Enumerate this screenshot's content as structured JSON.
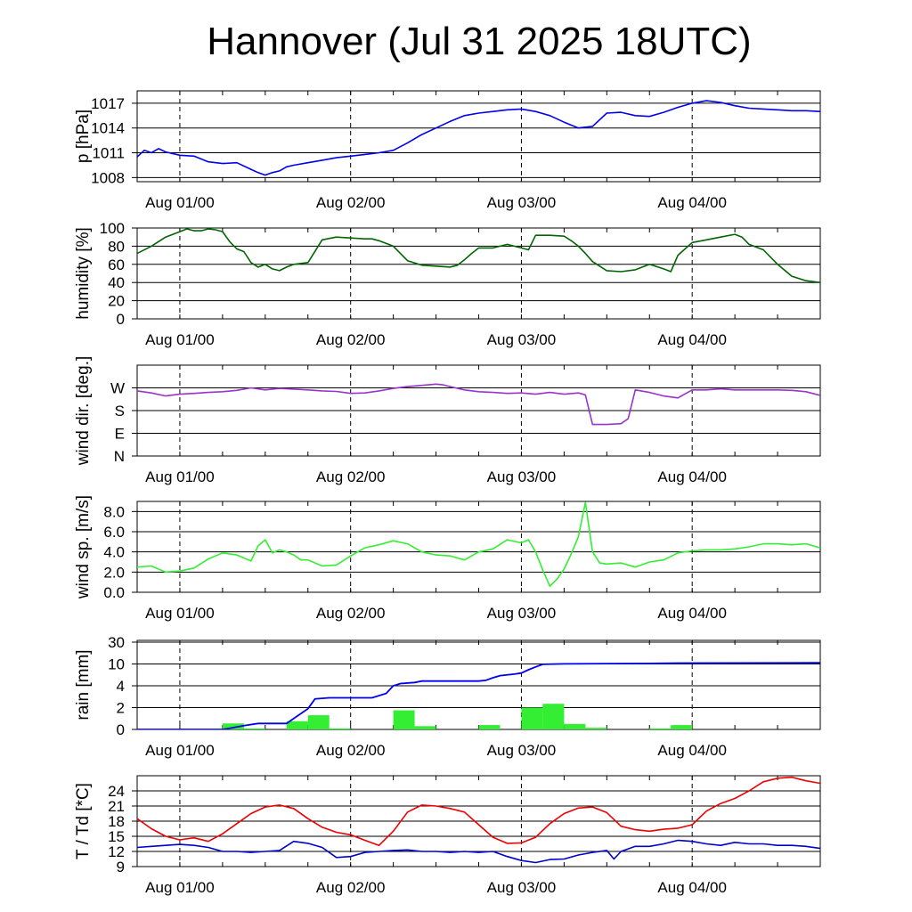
{
  "title": "Hannover (Jul 31 2025 18UTC)",
  "x_tick_labels": [
    "Aug 01/00",
    "Aug 02/00",
    "Aug 03/00",
    "Aug 04/00"
  ],
  "chart_data": [
    {
      "type": "line",
      "ylabel": "p [hPa]",
      "yticks": [
        1008,
        1011,
        1014,
        1017
      ],
      "ylim": [
        1007.5,
        1018.5
      ],
      "x_unit": "hours since Jul 31 18UTC",
      "xlim": [
        0,
        96
      ],
      "grid": "horizontal lines at y ticks, dashed verticals at day boundaries",
      "series": [
        {
          "color": "#0000ee",
          "x": [
            0,
            1,
            2,
            3,
            4,
            6,
            8,
            10,
            12,
            14,
            16,
            17,
            18,
            19,
            20,
            21,
            22,
            24,
            26,
            28,
            30,
            32,
            34,
            36,
            38,
            40,
            42,
            44,
            46,
            48,
            50,
            52,
            54,
            56,
            58,
            60,
            62,
            64,
            66,
            68,
            70,
            72,
            74,
            76,
            78,
            80,
            82,
            84,
            86,
            88,
            90,
            92,
            94,
            96
          ],
          "y": [
            1010.5,
            1011.3,
            1011.0,
            1011.5,
            1011.1,
            1010.7,
            1010.6,
            1009.9,
            1009.7,
            1009.8,
            1009.0,
            1008.6,
            1008.3,
            1008.6,
            1008.8,
            1009.3,
            1009.5,
            1009.8,
            1010.1,
            1010.4,
            1010.6,
            1010.8,
            1011.0,
            1011.3,
            1012.2,
            1013.2,
            1014.0,
            1014.8,
            1015.5,
            1015.8,
            1016.0,
            1016.2,
            1016.3,
            1016.0,
            1015.5,
            1014.7,
            1014.0,
            1014.2,
            1015.8,
            1015.9,
            1015.5,
            1015.4,
            1015.9,
            1016.5,
            1017.0,
            1017.3,
            1017.1,
            1016.7,
            1016.4,
            1016.3,
            1016.2,
            1016.1,
            1016.1,
            1016.0
          ]
        }
      ]
    },
    {
      "type": "line",
      "ylabel": "humidity [%]",
      "yticks": [
        0,
        20,
        40,
        60,
        80,
        100
      ],
      "ylim": [
        0,
        100
      ],
      "x_unit": "hours since Jul 31 18UTC",
      "xlim": [
        0,
        96
      ],
      "series": [
        {
          "color": "#006600",
          "x": [
            0,
            2,
            4,
            6,
            7,
            8,
            9,
            10,
            11,
            12,
            13,
            14,
            15,
            16,
            17,
            18,
            19,
            20,
            21,
            22,
            24,
            26,
            28,
            30,
            32,
            33,
            34,
            36,
            38,
            40,
            42,
            44,
            45,
            46,
            47,
            48,
            50,
            52,
            54,
            55,
            56,
            58,
            60,
            61,
            62,
            63,
            64,
            66,
            68,
            70,
            72,
            74,
            75,
            76,
            78,
            80,
            82,
            84,
            85,
            86,
            88,
            90,
            92,
            94,
            96
          ],
          "y": [
            72,
            80,
            90,
            96,
            99,
            97,
            97,
            99,
            98,
            96,
            85,
            77,
            74,
            62,
            57,
            60,
            55,
            53,
            57,
            60,
            62,
            87,
            90,
            89,
            88,
            88,
            86,
            80,
            64,
            59,
            58,
            57,
            59,
            65,
            72,
            78,
            78,
            82,
            78,
            76,
            92,
            92,
            91,
            86,
            80,
            72,
            63,
            53,
            52,
            54,
            60,
            55,
            52,
            70,
            84,
            87,
            90,
            93,
            90,
            82,
            76,
            60,
            47,
            42,
            40
          ]
        }
      ]
    },
    {
      "type": "line",
      "ylabel": "wind dir. [deg.]",
      "ytick_labels": [
        "N",
        "E",
        "S",
        "W"
      ],
      "yticks": [
        0,
        90,
        180,
        270
      ],
      "ylim": [
        0,
        360
      ],
      "x_unit": "hours since Jul 31 18UTC",
      "xlim": [
        0,
        96
      ],
      "series": [
        {
          "color": "#9933cc",
          "x": [
            0,
            2,
            4,
            6,
            8,
            10,
            12,
            14,
            16,
            18,
            20,
            22,
            24,
            26,
            28,
            30,
            32,
            34,
            36,
            38,
            40,
            42,
            43,
            44,
            46,
            48,
            50,
            52,
            54,
            56,
            58,
            60,
            62,
            63,
            64,
            66,
            68,
            69,
            70,
            72,
            74,
            76,
            78,
            80,
            82,
            84,
            86,
            88,
            90,
            92,
            94,
            96
          ],
          "y": [
            258,
            250,
            238,
            245,
            248,
            252,
            255,
            260,
            270,
            262,
            268,
            265,
            262,
            258,
            256,
            248,
            250,
            258,
            268,
            275,
            280,
            285,
            282,
            275,
            262,
            255,
            252,
            248,
            250,
            245,
            252,
            245,
            250,
            242,
            125,
            125,
            128,
            148,
            262,
            252,
            238,
            230,
            262,
            262,
            266,
            262,
            262,
            262,
            262,
            260,
            255,
            240
          ]
        }
      ]
    },
    {
      "type": "line",
      "ylabel": "wind sp. [m/s]",
      "yticks": [
        0.0,
        2.0,
        4.0,
        6.0,
        8.0
      ],
      "ylim": [
        0,
        9.0
      ],
      "x_unit": "hours since Jul 31 18UTC",
      "xlim": [
        0,
        96
      ],
      "series": [
        {
          "color": "#33ee33",
          "x": [
            0,
            2,
            4,
            6,
            8,
            10,
            12,
            14,
            16,
            17,
            18,
            19,
            20,
            21,
            22,
            23,
            24,
            26,
            28,
            30,
            32,
            34,
            36,
            38,
            40,
            42,
            44,
            46,
            48,
            50,
            52,
            54,
            55,
            56,
            57,
            58,
            59,
            60,
            61,
            62,
            63,
            64,
            65,
            66,
            68,
            70,
            72,
            74,
            76,
            78,
            80,
            82,
            84,
            86,
            88,
            90,
            92,
            94,
            96
          ],
          "y": [
            2.5,
            2.6,
            2.0,
            2.1,
            2.4,
            3.3,
            3.9,
            3.7,
            3.1,
            4.6,
            5.2,
            3.9,
            4.2,
            4.0,
            3.7,
            3.2,
            3.2,
            2.6,
            2.7,
            3.6,
            4.4,
            4.7,
            5.1,
            4.8,
            4.0,
            3.7,
            3.6,
            3.2,
            4.0,
            4.3,
            5.2,
            4.9,
            5.2,
            4.0,
            2.2,
            0.6,
            1.3,
            2.3,
            3.8,
            5.5,
            8.9,
            4.0,
            2.9,
            2.8,
            2.9,
            2.5,
            3.0,
            3.2,
            3.9,
            4.1,
            4.2,
            4.2,
            4.3,
            4.5,
            4.8,
            4.8,
            4.7,
            4.8,
            4.4
          ]
        }
      ]
    },
    {
      "type": "bar",
      "ylabel": "rain [mm]",
      "ytick_labels": [
        "0",
        "2",
        "4",
        "10",
        "30"
      ],
      "yscale": "nonlinear (0, 2, 4, 10, 30 equally spaced)",
      "x_unit": "hours since Jul 31 18UTC",
      "xlim": [
        0,
        96
      ],
      "bar_width_hours": 3,
      "bar_color": "#33ee33",
      "bars": {
        "x_start": [
          12,
          15,
          21,
          24,
          27,
          36,
          39,
          48,
          54,
          57,
          60,
          63,
          72,
          75
        ],
        "values": [
          0.55,
          0.1,
          0.75,
          1.3,
          0.1,
          1.75,
          0.3,
          0.4,
          2.0,
          2.35,
          0.5,
          0.15,
          0.1,
          0.4
        ]
      },
      "cumulative": {
        "color": "#0000ee",
        "x": [
          0,
          12,
          13,
          15,
          17,
          21,
          22,
          24,
          25,
          27,
          29,
          33,
          35,
          36,
          37,
          39,
          40,
          41,
          48,
          49,
          50,
          51,
          53,
          54,
          55,
          56,
          57,
          60,
          66,
          72,
          76,
          96
        ],
        "y": [
          0,
          0,
          0.1,
          0.35,
          0.55,
          0.55,
          1.0,
          1.9,
          2.8,
          2.9,
          2.9,
          2.9,
          3.3,
          4.0,
          4.6,
          4.9,
          5.3,
          5.3,
          5.3,
          5.5,
          6.2,
          6.8,
          7.2,
          7.5,
          8.4,
          9.2,
          9.9,
          10.1,
          10.3,
          10.5,
          10.8,
          11.1
        ]
      }
    },
    {
      "type": "line",
      "ylabel": "T / Td [*C]",
      "yticks": [
        9,
        12,
        15,
        18,
        21,
        24
      ],
      "ylim": [
        9,
        27
      ],
      "x_unit": "hours since Jul 31 18UTC",
      "xlim": [
        0,
        96
      ],
      "series": [
        {
          "color": "#ee0000",
          "x": [
            0,
            2,
            4,
            6,
            8,
            10,
            12,
            14,
            16,
            18,
            20,
            22,
            24,
            26,
            28,
            30,
            32,
            34,
            36,
            38,
            40,
            42,
            44,
            46,
            48,
            50,
            52,
            54,
            56,
            58,
            60,
            62,
            64,
            66,
            68,
            70,
            72,
            74,
            76,
            78,
            80,
            82,
            84,
            86,
            88,
            90,
            92,
            94,
            96
          ],
          "y": [
            18.5,
            16.5,
            15.0,
            14.3,
            14.7,
            14.0,
            15.5,
            17.5,
            19.5,
            20.8,
            21.2,
            20.5,
            18.5,
            16.8,
            15.8,
            15.3,
            14.2,
            13.2,
            16.0,
            19.8,
            21.2,
            21.0,
            20.5,
            19.8,
            17.3,
            14.8,
            13.6,
            13.7,
            14.8,
            17.5,
            19.5,
            20.6,
            20.8,
            19.7,
            17.0,
            16.3,
            16.0,
            16.4,
            16.6,
            17.3,
            20.0,
            21.5,
            22.5,
            24.0,
            25.8,
            26.5,
            26.7,
            26.0,
            25.5
          ]
        },
        {
          "color": "#0000cc",
          "x": [
            0,
            2,
            4,
            6,
            8,
            10,
            12,
            14,
            16,
            18,
            20,
            22,
            24,
            26,
            28,
            30,
            32,
            34,
            36,
            38,
            40,
            42,
            44,
            46,
            48,
            50,
            52,
            54,
            56,
            58,
            60,
            62,
            64,
            66,
            67,
            68,
            70,
            72,
            74,
            76,
            78,
            80,
            82,
            84,
            86,
            88,
            90,
            92,
            94,
            96
          ],
          "y": [
            12.8,
            13.0,
            13.2,
            13.4,
            13.2,
            12.8,
            12.0,
            12.0,
            11.8,
            12.0,
            12.2,
            14.0,
            13.6,
            12.8,
            10.8,
            11.0,
            11.8,
            12.0,
            12.2,
            12.3,
            12.0,
            12.0,
            11.8,
            12.0,
            11.8,
            12.0,
            11.0,
            10.2,
            9.8,
            10.4,
            10.5,
            11.3,
            11.8,
            12.2,
            10.5,
            12.0,
            13.0,
            13.0,
            13.5,
            14.2,
            14.0,
            13.5,
            13.2,
            13.8,
            13.5,
            13.5,
            13.2,
            13.2,
            13.0,
            12.6
          ]
        }
      ]
    }
  ]
}
